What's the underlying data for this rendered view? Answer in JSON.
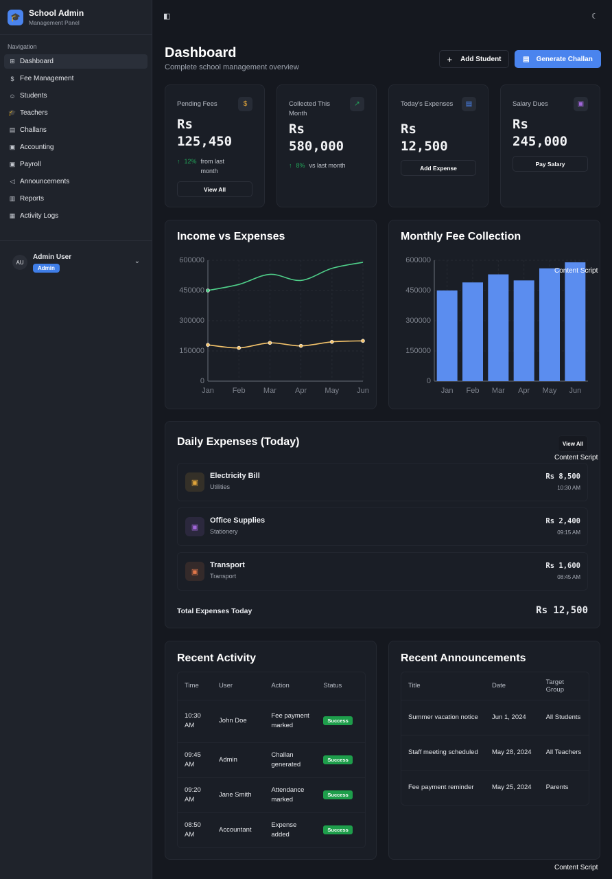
{
  "app": {
    "title": "School Admin",
    "subtitle": "Management Panel"
  },
  "sidebar": {
    "section": "Navigation",
    "items": [
      {
        "label": "Dashboard",
        "icon": "grid-icon",
        "active": true
      },
      {
        "label": "Fee Management",
        "icon": "dollar-icon"
      },
      {
        "label": "Students",
        "icon": "users-icon"
      },
      {
        "label": "Teachers",
        "icon": "graduation-cap-icon"
      },
      {
        "label": "Challans",
        "icon": "receipt-icon"
      },
      {
        "label": "Accounting",
        "icon": "wallet-icon"
      },
      {
        "label": "Payroll",
        "icon": "wallet-icon"
      },
      {
        "label": "Announcements",
        "icon": "megaphone-icon"
      },
      {
        "label": "Reports",
        "icon": "bar-chart-icon"
      },
      {
        "label": "Activity Logs",
        "icon": "scroll-icon"
      }
    ],
    "user": {
      "initials": "AU",
      "name": "Admin User",
      "role": "Admin"
    }
  },
  "header": {
    "title": "Dashboard",
    "subtitle": "Complete school management overview",
    "add_student": "Add Student",
    "generate_challan": "Generate Challan"
  },
  "stats": [
    {
      "label": "Pending Fees",
      "currency": "Rs",
      "value": "125,450",
      "trend": "12%",
      "trend_text": "from last month",
      "button": "View All",
      "icon_color": "#e0a43a"
    },
    {
      "label": "Collected This Month",
      "currency": "Rs",
      "value": "580,000",
      "trend": "8%",
      "trend_text": "vs last month",
      "icon_color": "#22a65a"
    },
    {
      "label": "Today's Expenses",
      "currency": "Rs",
      "value": "12,500",
      "button": "Add Expense",
      "icon_color": "#4a84ee"
    },
    {
      "label": "Salary Dues",
      "currency": "Rs",
      "value": "245,000",
      "button": "Pay Salary",
      "icon_color": "#a066d8"
    }
  ],
  "chart_data": [
    {
      "type": "line",
      "title": "Income vs Expenses",
      "categories": [
        "Jan",
        "Feb",
        "Mar",
        "Apr",
        "May",
        "Jun"
      ],
      "yticks": [
        "600000",
        "450000",
        "300000",
        "150000",
        "0"
      ],
      "ylim": [
        0,
        600000
      ],
      "grid": true,
      "series": [
        {
          "values": [
            450000,
            480000,
            530000,
            500000,
            560000,
            590000
          ],
          "color": "#4fd08a"
        },
        {
          "values": [
            180000,
            165000,
            190000,
            175000,
            195000,
            200000
          ],
          "color": "#f5c46b"
        }
      ]
    },
    {
      "type": "bar",
      "title": "Monthly Fee Collection",
      "categories": [
        "Jan",
        "Feb",
        "Mar",
        "Apr",
        "May",
        "Jun"
      ],
      "yticks": [
        "600000",
        "450000",
        "300000",
        "150000",
        "0"
      ],
      "ylim": [
        0,
        600000
      ],
      "grid": true,
      "values": [
        450000,
        490000,
        530000,
        500000,
        560000,
        590000
      ],
      "color": "#5b8def"
    }
  ],
  "daily_expenses": {
    "title": "Daily Expenses (Today)",
    "view_all": "View All",
    "items": [
      {
        "name": "Electricity Bill",
        "category": "Utilities",
        "amount": "Rs 8,500",
        "time": "10:30 AM",
        "color": "#e0a43a"
      },
      {
        "name": "Office Supplies",
        "category": "Stationery",
        "amount": "Rs 2,400",
        "time": "09:15 AM",
        "color": "#a066d8"
      },
      {
        "name": "Transport",
        "category": "Transport",
        "amount": "Rs 1,600",
        "time": "08:45 AM",
        "color": "#e0774a"
      }
    ],
    "total_label": "Total Expenses Today",
    "total": "Rs 12,500"
  },
  "activity": {
    "title": "Recent Activity",
    "columns": [
      "Time",
      "User",
      "Action",
      "Status"
    ],
    "rows": [
      {
        "time": "10:30 AM",
        "user": "John Doe",
        "action": "Fee payment marked",
        "status": "Success"
      },
      {
        "time": "09:45 AM",
        "user": "Admin",
        "action": "Challan generated",
        "status": "Success"
      },
      {
        "time": "09:20 AM",
        "user": "Jane Smith",
        "action": "Attendance marked",
        "status": "Success"
      },
      {
        "time": "08:50 AM",
        "user": "Accountant",
        "action": "Expense added",
        "status": "Success"
      }
    ]
  },
  "announcements": {
    "title": "Recent Announcements",
    "columns": [
      "Title",
      "Date",
      "Target Group"
    ],
    "rows": [
      {
        "title": "Summer vacation notice",
        "date": "Jun 1, 2024",
        "target": "All Students"
      },
      {
        "title": "Staff meeting scheduled",
        "date": "May 28, 2024",
        "target": "All Teachers"
      },
      {
        "title": "Fee payment reminder",
        "date": "May 25, 2024",
        "target": "Parents"
      }
    ]
  },
  "overlay_label": "Content Script"
}
